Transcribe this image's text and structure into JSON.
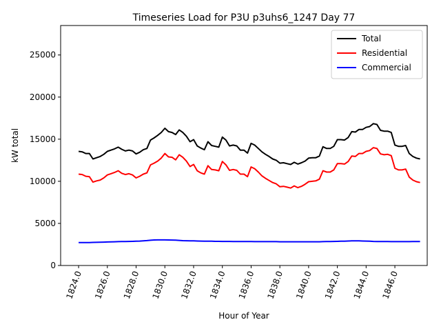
{
  "chart_data": {
    "type": "line",
    "title": "Timeseries Load for P3U p3uhs6_1247  Day 77",
    "xlabel": "Hour of Year",
    "ylabel": "kW total",
    "xlim": [
      1822.75,
      1848.25
    ],
    "ylim": [
      0,
      28500
    ],
    "xticks": [
      1824,
      1826,
      1828,
      1830,
      1832,
      1834,
      1836,
      1838,
      1840,
      1842,
      1844,
      1846
    ],
    "xtick_labels": [
      "1824.0",
      "1826.0",
      "1828.0",
      "1830.0",
      "1832.0",
      "1834.0",
      "1836.0",
      "1838.0",
      "1840.0",
      "1842.0",
      "1844.0",
      "1846.0"
    ],
    "yticks": [
      0,
      5000,
      10000,
      15000,
      20000,
      25000
    ],
    "ytick_labels": [
      "0",
      "5000",
      "10000",
      "15000",
      "20000",
      "25000"
    ],
    "legend_position": "top-right",
    "x": [
      1824,
      1824.25,
      1824.5,
      1824.75,
      1825,
      1825.25,
      1825.5,
      1825.75,
      1826,
      1826.25,
      1826.5,
      1826.75,
      1827,
      1827.25,
      1827.5,
      1827.75,
      1828,
      1828.25,
      1828.5,
      1828.75,
      1829,
      1829.25,
      1829.5,
      1829.75,
      1830,
      1830.25,
      1830.5,
      1830.75,
      1831,
      1831.25,
      1831.5,
      1831.75,
      1832,
      1832.25,
      1832.5,
      1832.75,
      1833,
      1833.25,
      1833.5,
      1833.75,
      1834,
      1834.25,
      1834.5,
      1834.75,
      1835,
      1835.25,
      1835.5,
      1835.75,
      1836,
      1836.25,
      1836.5,
      1836.75,
      1837,
      1837.25,
      1837.5,
      1837.75,
      1838,
      1838.25,
      1838.5,
      1838.75,
      1839,
      1839.25,
      1839.5,
      1839.75,
      1840,
      1840.25,
      1840.5,
      1840.75,
      1841,
      1841.25,
      1841.5,
      1841.75,
      1842,
      1842.25,
      1842.5,
      1842.75,
      1843,
      1843.25,
      1843.5,
      1843.75,
      1844,
      1844.25,
      1844.5,
      1844.75,
      1845,
      1845.25,
      1845.5,
      1845.75,
      1846,
      1846.25,
      1846.5,
      1846.75,
      1847,
      1847.25,
      1847.5,
      1847.75
    ],
    "series": [
      {
        "name": "Total",
        "color": "#000000",
        "values": [
          13550,
          13500,
          13300,
          13300,
          12650,
          12800,
          12950,
          13200,
          13550,
          13700,
          13850,
          14050,
          13800,
          13600,
          13700,
          13600,
          13250,
          13450,
          13750,
          13900,
          14900,
          15150,
          15450,
          15800,
          16300,
          15900,
          15800,
          15550,
          16100,
          15800,
          15350,
          14700,
          14950,
          14200,
          13950,
          13750,
          14700,
          14250,
          14150,
          14050,
          15250,
          14900,
          14200,
          14300,
          14200,
          13700,
          13700,
          13350,
          14500,
          14300,
          13900,
          13500,
          13200,
          12950,
          12650,
          12500,
          12150,
          12200,
          12100,
          12000,
          12250,
          12050,
          12200,
          12400,
          12750,
          12800,
          12800,
          13000,
          14100,
          13900,
          13900,
          14150,
          14950,
          14950,
          14900,
          15200,
          15900,
          15850,
          16150,
          16150,
          16400,
          16500,
          16850,
          16750,
          16050,
          15950,
          15950,
          15800,
          14300,
          14150,
          14150,
          14250,
          13300,
          12950,
          12750,
          12650
        ]
      },
      {
        "name": "Residential",
        "color": "#ff0000",
        "values": [
          10850,
          10800,
          10600,
          10550,
          9900,
          10050,
          10150,
          10400,
          10750,
          10900,
          11050,
          11250,
          10950,
          10800,
          10900,
          10750,
          10400,
          10600,
          10850,
          11000,
          11950,
          12150,
          12400,
          12750,
          13300,
          12900,
          12850,
          12550,
          13150,
          12850,
          12400,
          11750,
          12000,
          11250,
          11000,
          10850,
          11850,
          11400,
          11350,
          11250,
          12350,
          11950,
          11300,
          11400,
          11300,
          10850,
          10850,
          10550,
          11700,
          11500,
          11100,
          10650,
          10350,
          10100,
          9850,
          9700,
          9350,
          9400,
          9300,
          9200,
          9450,
          9250,
          9400,
          9650,
          9950,
          10000,
          10050,
          10250,
          11250,
          11100,
          11100,
          11350,
          12100,
          12100,
          12050,
          12350,
          13000,
          12950,
          13300,
          13300,
          13550,
          13650,
          14000,
          13900,
          13250,
          13150,
          13200,
          13050,
          11550,
          11350,
          11350,
          11450,
          10500,
          10150,
          9950,
          9850
        ]
      },
      {
        "name": "Commercial",
        "color": "#0000ff",
        "values": [
          2720,
          2720,
          2720,
          2730,
          2740,
          2750,
          2770,
          2780,
          2790,
          2800,
          2820,
          2830,
          2840,
          2850,
          2860,
          2870,
          2880,
          2900,
          2930,
          2960,
          3000,
          3030,
          3040,
          3040,
          3040,
          3030,
          3020,
          3010,
          2980,
          2950,
          2940,
          2930,
          2920,
          2910,
          2900,
          2890,
          2880,
          2880,
          2870,
          2870,
          2860,
          2860,
          2860,
          2850,
          2850,
          2850,
          2850,
          2840,
          2840,
          2830,
          2830,
          2830,
          2830,
          2830,
          2830,
          2830,
          2820,
          2820,
          2820,
          2820,
          2820,
          2820,
          2820,
          2820,
          2820,
          2820,
          2820,
          2820,
          2830,
          2840,
          2850,
          2860,
          2870,
          2880,
          2890,
          2910,
          2920,
          2930,
          2920,
          2910,
          2900,
          2880,
          2860,
          2850,
          2840,
          2840,
          2840,
          2830,
          2830,
          2830,
          2830,
          2830,
          2830,
          2840,
          2840,
          2840
        ]
      }
    ]
  }
}
